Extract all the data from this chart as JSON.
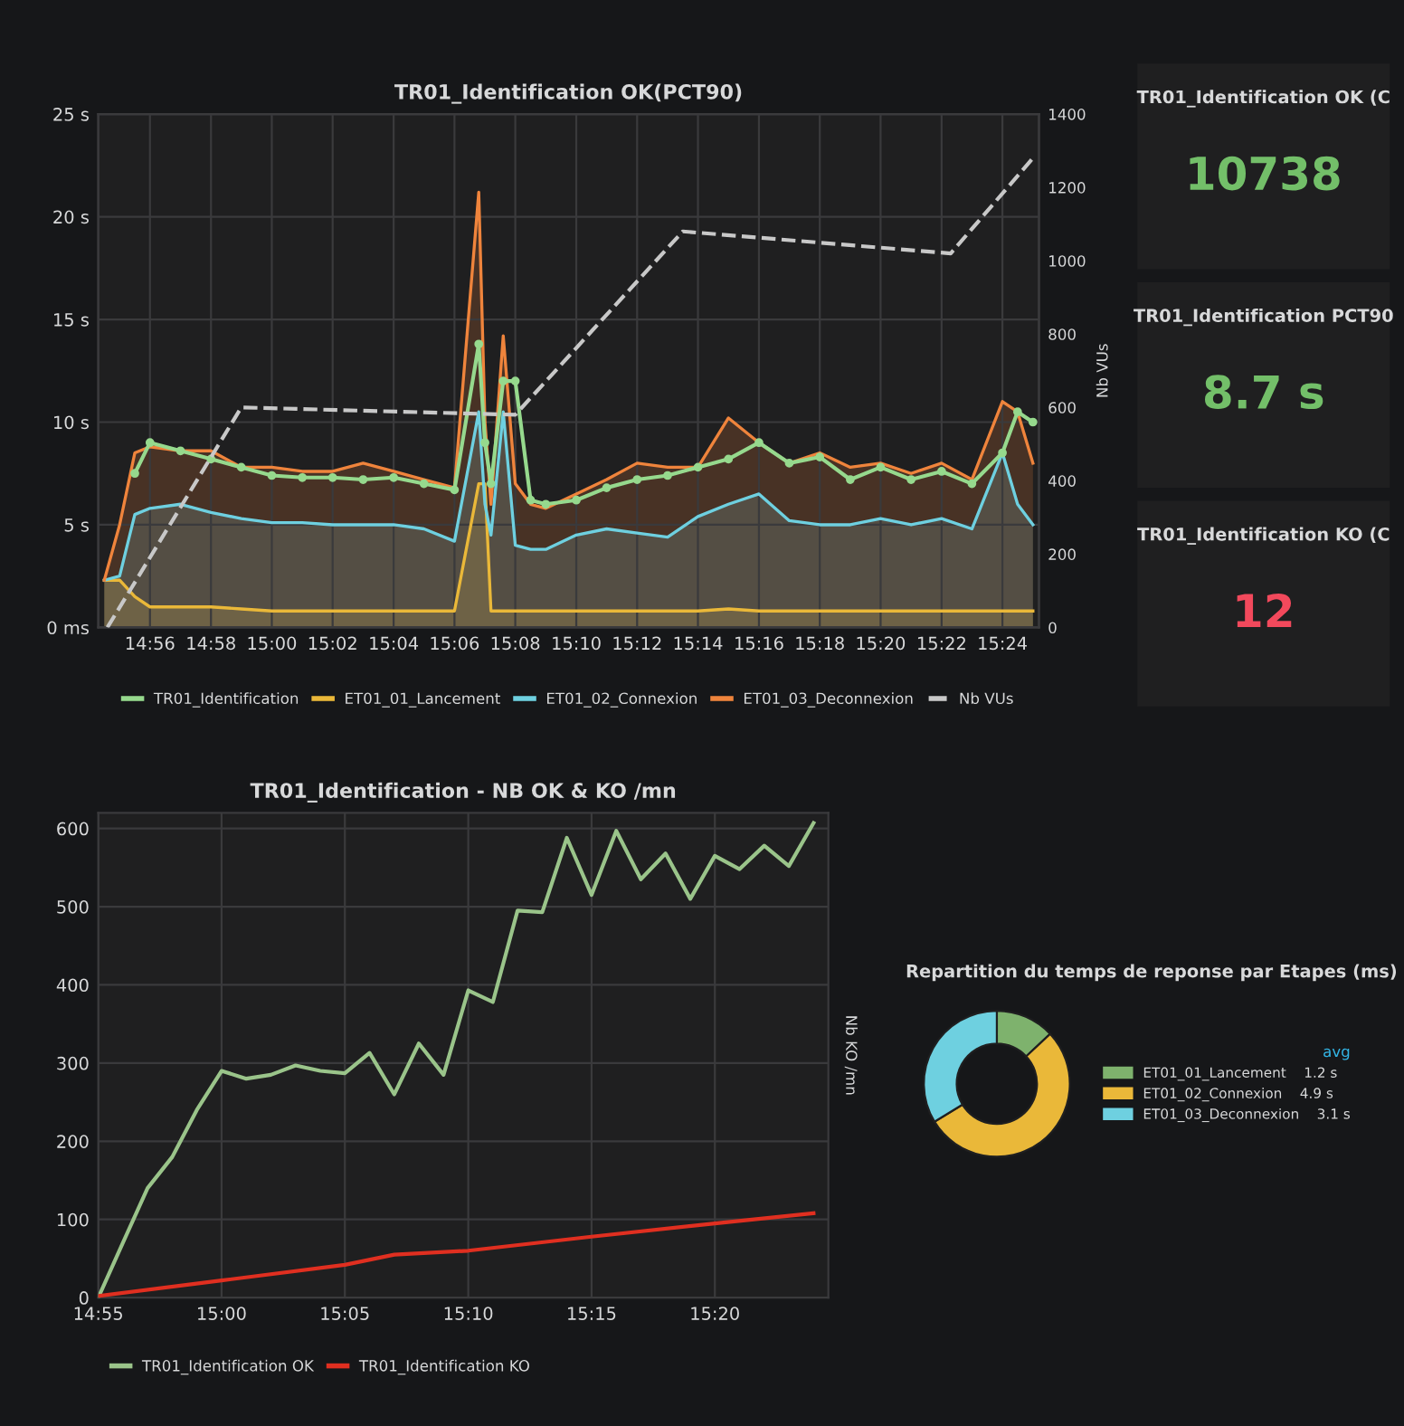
{
  "chart_data": [
    {
      "type": "area",
      "title": "TR01_Identification OK(PCT90)",
      "y2label": "Nb VUs",
      "x": [
        14.9083,
        14.9167,
        14.925,
        14.9333,
        14.95,
        14.9667,
        14.9833,
        15.0,
        15.0167,
        15.0333,
        15.05,
        15.0667,
        15.0833,
        15.1,
        15.1133,
        15.1167,
        15.12,
        15.1267,
        15.1333,
        15.1417,
        15.15,
        15.1667,
        15.1833,
        15.2,
        15.2167,
        15.2333,
        15.25,
        15.2667,
        15.2833,
        15.3,
        15.3167,
        15.3333,
        15.35,
        15.3667,
        15.3833,
        15.4,
        15.4083,
        15.4167
      ],
      "series": [
        {
          "name": "TR01_Identification",
          "type": "line",
          "marker": "circle",
          "color": "#96d98d",
          "values": [
            null,
            null,
            7.5,
            9.0,
            8.6,
            8.2,
            7.8,
            7.4,
            7.3,
            7.3,
            7.2,
            7.3,
            7.0,
            6.7,
            13.8,
            9.0,
            7.0,
            12.0,
            12.0,
            6.2,
            6.0,
            6.2,
            6.8,
            7.2,
            7.4,
            7.8,
            8.2,
            9.0,
            8.0,
            8.3,
            7.2,
            7.8,
            7.2,
            7.6,
            7.0,
            8.5,
            10.5,
            10.0
          ]
        },
        {
          "name": "ET01_01_Lancement",
          "color": "#eab839",
          "values": [
            2.3,
            2.3,
            1.5,
            1.0,
            1.0,
            1.0,
            0.9,
            0.8,
            0.8,
            0.8,
            0.8,
            0.8,
            0.8,
            0.8,
            7.0,
            7.0,
            0.8,
            0.8,
            0.8,
            0.8,
            0.8,
            0.8,
            0.8,
            0.8,
            0.8,
            0.8,
            0.9,
            0.8,
            0.8,
            0.8,
            0.8,
            0.8,
            0.8,
            0.8,
            0.8,
            0.8,
            0.8,
            0.8
          ]
        },
        {
          "name": "ET01_02_Connexion",
          "color": "#6ed0e0",
          "values": [
            2.3,
            2.5,
            5.5,
            5.8,
            6.0,
            5.6,
            5.3,
            5.1,
            5.1,
            5.0,
            5.0,
            5.0,
            4.8,
            4.2,
            10.5,
            6.0,
            4.5,
            10.5,
            4.0,
            3.8,
            3.8,
            4.5,
            4.8,
            4.6,
            4.4,
            5.4,
            6.0,
            6.5,
            5.2,
            5.0,
            5.0,
            5.3,
            5.0,
            5.3,
            4.8,
            8.5,
            6.0,
            5.0
          ]
        },
        {
          "name": "ET01_03_Deconnexion",
          "color": "#ef843c",
          "values": [
            2.3,
            5.0,
            8.5,
            8.8,
            8.6,
            8.6,
            7.8,
            7.8,
            7.6,
            7.6,
            8.0,
            7.6,
            7.2,
            6.8,
            21.2,
            10.0,
            6.0,
            14.2,
            7.0,
            6.0,
            5.8,
            6.5,
            7.2,
            8.0,
            7.8,
            7.8,
            10.2,
            9.0,
            8.0,
            8.5,
            7.8,
            8.0,
            7.5,
            8.0,
            7.2,
            11.0,
            10.5,
            8.0
          ]
        },
        {
          "name": "Nb VUs",
          "type": "line",
          "axis": "y2",
          "line_style": "dashed",
          "color": "#c8c8c8",
          "x": [
            14.91,
            14.9833,
            15.1333,
            15.225,
            15.3717,
            15.4167
          ],
          "values": [
            0,
            600,
            580,
            1080,
            1020,
            1280
          ]
        }
      ],
      "xlim": [
        14.905,
        15.42
      ],
      "xticks": [
        {
          "value": 14.9333,
          "label": "14:56"
        },
        {
          "value": 14.9667,
          "label": "14:58"
        },
        {
          "value": 15.0,
          "label": "15:00"
        },
        {
          "value": 15.0333,
          "label": "15:02"
        },
        {
          "value": 15.0667,
          "label": "15:04"
        },
        {
          "value": 15.1,
          "label": "15:06"
        },
        {
          "value": 15.1333,
          "label": "15:08"
        },
        {
          "value": 15.1667,
          "label": "15:10"
        },
        {
          "value": 15.2,
          "label": "15:12"
        },
        {
          "value": 15.2333,
          "label": "15:14"
        },
        {
          "value": 15.2667,
          "label": "15:16"
        },
        {
          "value": 15.3,
          "label": "15:18"
        },
        {
          "value": 15.3333,
          "label": "15:20"
        },
        {
          "value": 15.3667,
          "label": "15:22"
        },
        {
          "value": 15.4,
          "label": "15:24"
        }
      ],
      "ylim": [
        0,
        25
      ],
      "yticks": [
        {
          "value": 0,
          "label": "0 ms"
        },
        {
          "value": 5,
          "label": "5 s"
        },
        {
          "value": 10,
          "label": "10 s"
        },
        {
          "value": 15,
          "label": "15 s"
        },
        {
          "value": 20,
          "label": "20 s"
        },
        {
          "value": 25,
          "label": "25 s"
        }
      ],
      "y2lim": [
        0,
        1400
      ],
      "y2ticks": [
        0,
        200,
        400,
        600,
        800,
        1000,
        1200,
        1400
      ],
      "grid": true,
      "legend": "bottom"
    },
    {
      "type": "other",
      "annotations": [
        "TR01_Identification OK (C",
        "10738",
        "TR01_Identification PCT90",
        "8.7 s",
        "TR01_Identification KO (C",
        "12"
      ],
      "colors": [
        "#73bf69",
        "#73bf69",
        "#f2495c"
      ]
    },
    {
      "type": "line",
      "title": "TR01_Identification - NB OK & KO /mn",
      "y2label": "Nb KO /mn",
      "x": [
        14.9167,
        14.9333,
        14.95,
        14.9667,
        14.9833,
        15.0,
        15.0167,
        15.0333,
        15.05,
        15.0667,
        15.0833,
        15.1,
        15.1167,
        15.1333,
        15.15,
        15.1667,
        15.1833,
        15.2,
        15.2167,
        15.2333,
        15.25,
        15.2667,
        15.2833,
        15.3,
        15.3167,
        15.3333,
        15.35,
        15.3667,
        15.3833,
        15.4
      ],
      "series": [
        {
          "name": "TR01_Identification OK",
          "color": "#9ac48a",
          "values": [
            0,
            70,
            140,
            180,
            240,
            290,
            280,
            285,
            297,
            290,
            287,
            313,
            260,
            325,
            285,
            393,
            378,
            495,
            493,
            588,
            515,
            597,
            535,
            568,
            510,
            565,
            548,
            578,
            552,
            607
          ]
        },
        {
          "name": "TR01_Identification KO",
          "color": "#e02f20",
          "x": [
            14.9167,
            15.0,
            15.0833,
            15.1167,
            15.1667,
            15.25,
            15.3333,
            15.4
          ],
          "values": [
            2,
            22,
            42,
            55,
            60,
            78,
            95,
            108
          ]
        }
      ],
      "xlim": [
        14.9167,
        15.41
      ],
      "xticks": [
        {
          "value": 14.9167,
          "label": "14:55"
        },
        {
          "value": 15.0,
          "label": "15:00"
        },
        {
          "value": 15.0833,
          "label": "15:05"
        },
        {
          "value": 15.1667,
          "label": "15:10"
        },
        {
          "value": 15.25,
          "label": "15:15"
        },
        {
          "value": 15.3333,
          "label": "15:20"
        }
      ],
      "ylim": [
        0,
        620
      ],
      "yticks": [
        0,
        100,
        200,
        300,
        400,
        500,
        600
      ],
      "grid": true,
      "legend": "bottom left"
    },
    {
      "type": "donut",
      "title": "Repartition du temps de reponse par Etapes (ms)",
      "categories": [
        "ET01_01_Lancement",
        "ET01_02_Connexion",
        "ET01_03_Deconnexion"
      ],
      "values": [
        1.2,
        4.9,
        3.1
      ],
      "value_labels": [
        "1.2 s",
        "4.9 s",
        "3.1 s"
      ],
      "colors": [
        "#7eb26d",
        "#eab839",
        "#6ed0e0"
      ],
      "legend_title": "avg",
      "legend": "right"
    }
  ]
}
